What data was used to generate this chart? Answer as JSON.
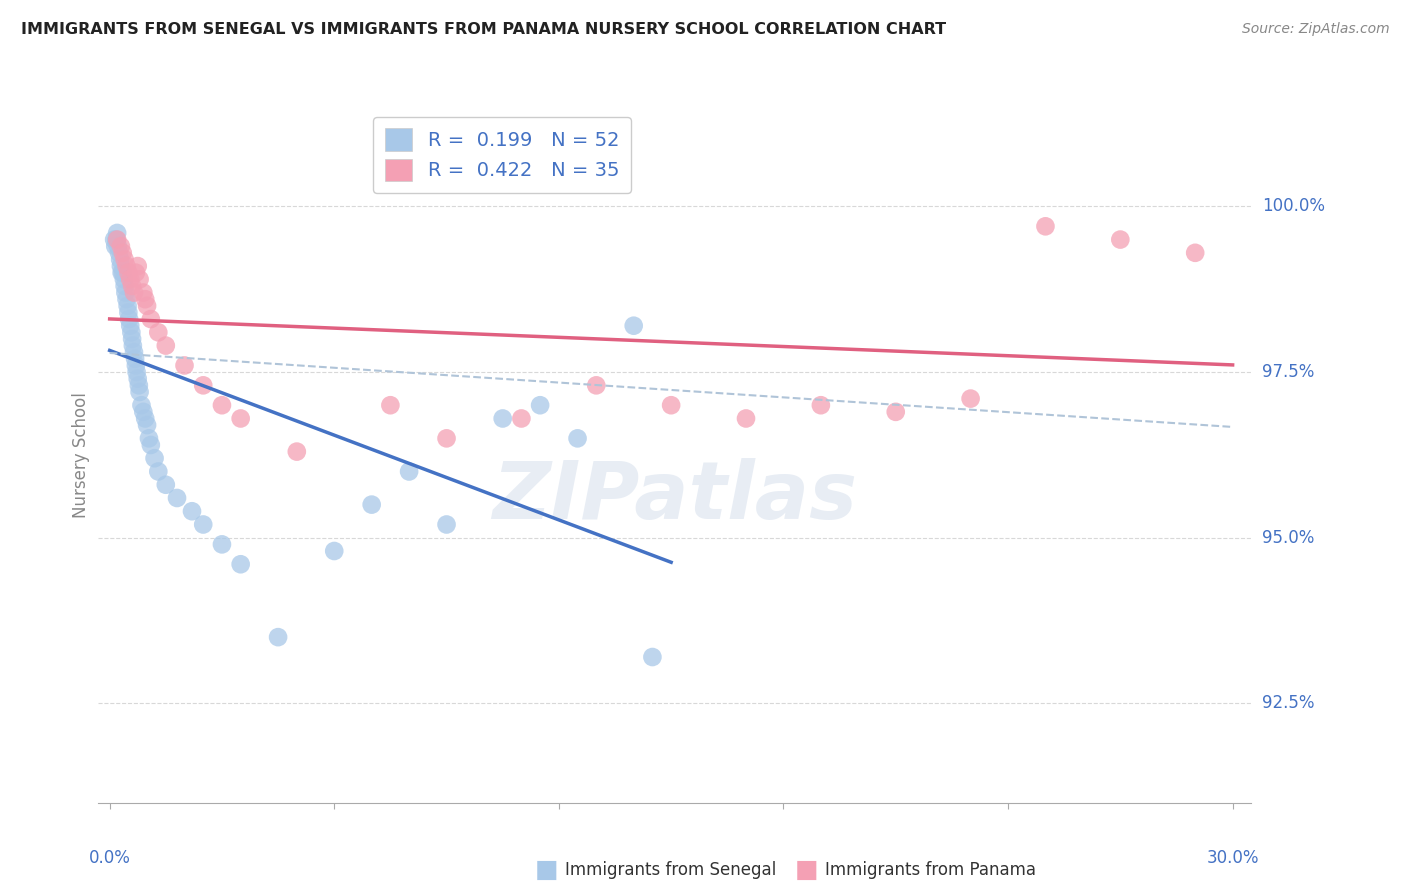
{
  "title": "IMMIGRANTS FROM SENEGAL VS IMMIGRANTS FROM PANAMA NURSERY SCHOOL CORRELATION CHART",
  "source": "Source: ZipAtlas.com",
  "ylabel": "Nursery School",
  "color_senegal": "#a8c8e8",
  "color_panama": "#f4a0b4",
  "color_line_senegal": "#4472c4",
  "color_line_panama": "#e06080",
  "color_dashed": "#b0c4d8",
  "color_text_blue": "#4472c4",
  "color_tick_blue": "#4472c4",
  "color_axis_label": "#888888",
  "background": "#ffffff",
  "grid_color": "#d8d8d8",
  "legend_r_senegal": "R =  0.199",
  "legend_n_senegal": "N = 52",
  "legend_r_panama": "R =  0.422",
  "legend_n_panama": "N = 35",
  "senegal_x": [
    0.12,
    0.15,
    0.18,
    0.2,
    0.22,
    0.25,
    0.28,
    0.3,
    0.32,
    0.35,
    0.38,
    0.4,
    0.42,
    0.45,
    0.48,
    0.5,
    0.52,
    0.55,
    0.58,
    0.6,
    0.62,
    0.65,
    0.68,
    0.7,
    0.72,
    0.75,
    0.78,
    0.8,
    0.85,
    0.9,
    0.95,
    1.0,
    1.05,
    1.1,
    1.2,
    1.3,
    1.5,
    1.8,
    2.2,
    2.5,
    3.0,
    3.5,
    4.5,
    6.0,
    7.0,
    8.0,
    9.0,
    10.5,
    11.5,
    12.5,
    14.0,
    14.5
  ],
  "senegal_y": [
    99.5,
    99.4,
    99.5,
    99.6,
    99.4,
    99.3,
    99.2,
    99.1,
    99.0,
    99.0,
    98.9,
    98.8,
    98.7,
    98.6,
    98.5,
    98.4,
    98.3,
    98.2,
    98.1,
    98.0,
    97.9,
    97.8,
    97.7,
    97.6,
    97.5,
    97.4,
    97.3,
    97.2,
    97.0,
    96.9,
    96.8,
    96.7,
    96.5,
    96.4,
    96.2,
    96.0,
    95.8,
    95.6,
    95.4,
    95.2,
    94.9,
    94.6,
    93.5,
    94.8,
    95.5,
    96.0,
    95.2,
    96.8,
    97.0,
    96.5,
    98.2,
    93.2
  ],
  "panama_x": [
    0.2,
    0.3,
    0.35,
    0.4,
    0.45,
    0.5,
    0.55,
    0.6,
    0.65,
    0.7,
    0.75,
    0.8,
    0.9,
    0.95,
    1.0,
    1.1,
    1.3,
    1.5,
    2.0,
    2.5,
    3.0,
    3.5,
    5.0,
    7.5,
    9.0,
    11.0,
    13.0,
    15.0,
    17.0,
    19.0,
    21.0,
    23.0,
    25.0,
    27.0,
    29.0
  ],
  "panama_y": [
    99.5,
    99.4,
    99.3,
    99.2,
    99.1,
    99.0,
    98.9,
    98.8,
    98.7,
    99.0,
    99.1,
    98.9,
    98.7,
    98.6,
    98.5,
    98.3,
    98.1,
    97.9,
    97.6,
    97.3,
    97.0,
    96.8,
    96.3,
    97.0,
    96.5,
    96.8,
    97.3,
    97.0,
    96.8,
    97.0,
    96.9,
    97.1,
    99.7,
    99.5,
    99.3
  ]
}
